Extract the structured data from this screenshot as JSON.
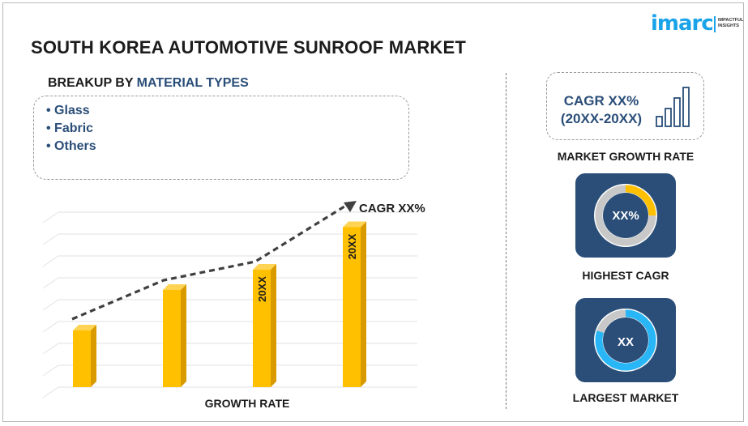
{
  "header": {
    "title": "SOUTH KOREA AUTOMOTIVE SUNROOF MARKET",
    "logo_text": "imarc",
    "logo_tagline_1": "IMPACTFUL",
    "logo_tagline_2": "INSIGHTS"
  },
  "breakup": {
    "heading_prefix": "BREAKUP BY ",
    "heading_highlight": "MATERIAL TYPES",
    "items": [
      "• Glass",
      "• Fabric",
      "• Others"
    ]
  },
  "chart_data": {
    "type": "bar",
    "categories": [
      "",
      "",
      "",
      ""
    ],
    "values": [
      2.8,
      4.8,
      5.8,
      7.9
    ],
    "bar_labels": [
      "",
      "",
      "20XX",
      "20XX"
    ],
    "trend_label": "CAGR XX%",
    "xlabel": "GROWTH RATE",
    "ylabel": "",
    "ylim": [
      0,
      8.5
    ],
    "grid": true,
    "bar_color": "#ffc000",
    "trend_color": "#404040"
  },
  "side_panel": {
    "cagr_line_1": "CAGR XX%",
    "cagr_line_2": "(20XX-20XX)",
    "growth_label": "MARKET GROWTH RATE",
    "highest": {
      "value": "XX%",
      "label": "HIGHEST CAGR",
      "ring_percent": 25,
      "accent": "#ffc000"
    },
    "largest": {
      "value": "XX",
      "label": "LARGEST MARKET",
      "ring_percent": 80,
      "accent": "#29b6f6"
    }
  },
  "colors": {
    "navy": "#2a4e78",
    "brand_blue": "#1aa3e8"
  }
}
